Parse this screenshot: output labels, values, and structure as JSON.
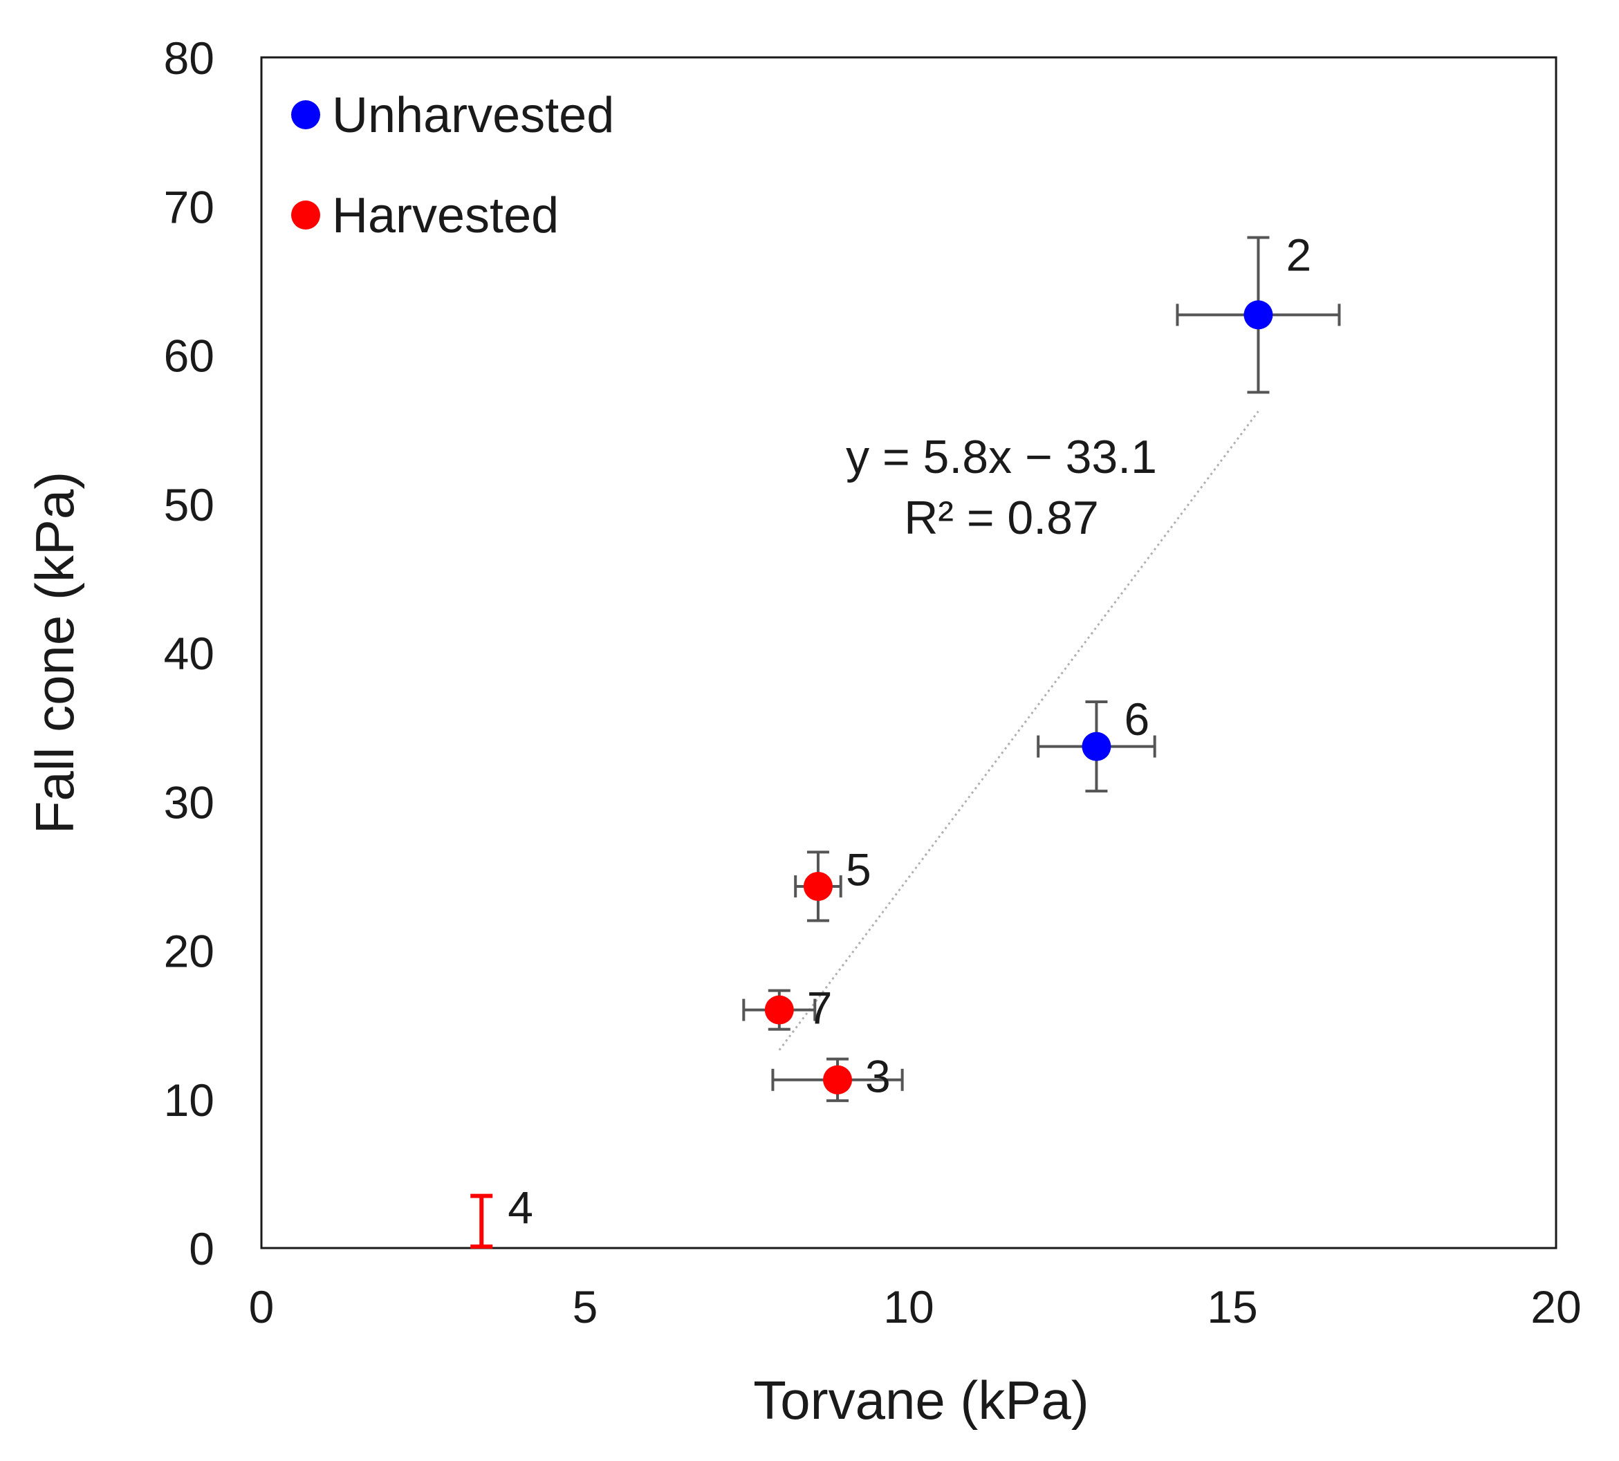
{
  "chart_data": {
    "type": "scatter",
    "xlabel": "Torvane (kPa)",
    "ylabel": "Fall cone (kPa)",
    "xlim": [
      0,
      20
    ],
    "ylim": [
      0,
      80
    ],
    "xticks": [
      0,
      5,
      10,
      15,
      20
    ],
    "yticks": [
      0,
      10,
      20,
      30,
      40,
      50,
      60,
      70,
      80
    ],
    "grid": false,
    "legend_position": "top-left",
    "series": [
      {
        "name": "Unharvested",
        "color": "#0000ff",
        "points": [
          {
            "label": "2",
            "x": 15.4,
            "y": 62.7,
            "xerr": 1.25,
            "yerr": 5.2
          },
          {
            "label": "6",
            "x": 12.9,
            "y": 33.7,
            "xerr": 0.9,
            "yerr": 3.0
          }
        ]
      },
      {
        "name": "Harvested",
        "color": "#ff0000",
        "points": [
          {
            "label": "5",
            "x": 8.6,
            "y": 24.3,
            "xerr": 0.35,
            "yerr": 2.3
          },
          {
            "label": "7",
            "x": 8.0,
            "y": 16.0,
            "xerr": 0.55,
            "yerr": 1.3
          },
          {
            "label": "3",
            "x": 8.9,
            "y": 11.3,
            "xerr": 1.0,
            "yerr": 1.4
          },
          {
            "label": "4",
            "x": 3.4,
            "y": 1.8,
            "xerr": 0,
            "yerr": 1.7,
            "marker": false
          }
        ]
      }
    ],
    "trendline": {
      "x_range": [
        8.0,
        15.4
      ],
      "slope": 5.8,
      "intercept": -33.1,
      "equation": "y = 5.8x − 33.1",
      "r2_text": "R² = 0.87"
    },
    "errorbar_color": "#555555",
    "trendline_color": "#b0b0b0"
  }
}
